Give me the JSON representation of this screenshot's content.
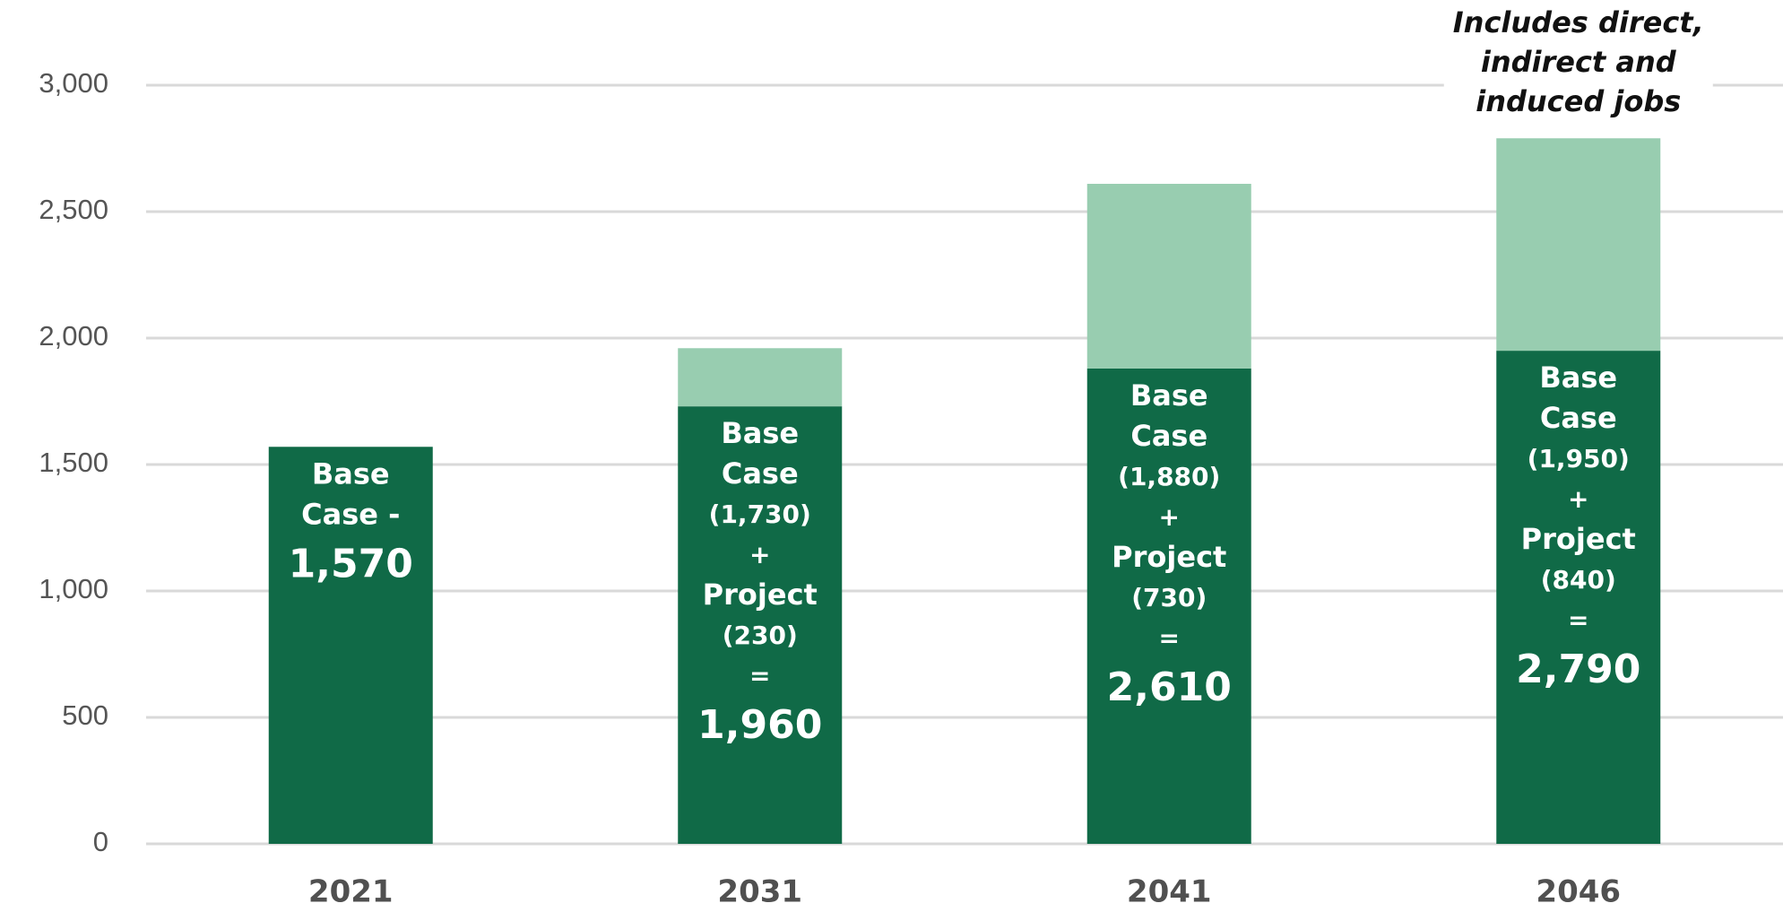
{
  "chart_data": {
    "type": "stacked_bar",
    "categories": [
      "2021",
      "2031",
      "2041",
      "2046"
    ],
    "series": [
      {
        "color": "#106a47",
        "values": [
          1570,
          1730,
          1880,
          1950
        ]
      },
      {
        "color": "#98cdb0",
        "values": [
          null,
          230,
          730,
          840
        ]
      }
    ],
    "bar_labels": [
      [
        "Base",
        "Case -",
        "1,570"
      ],
      [
        "Base",
        "Case",
        "(1,730)",
        "+",
        "Project",
        "(230)",
        "=",
        "1,960"
      ],
      [
        "Base",
        "Case",
        "(1,880)",
        "+",
        "Project",
        "(730)",
        "=",
        "2,610"
      ],
      [
        "Base",
        "Case",
        "(1,950)",
        "+",
        "Project",
        "(840)",
        "=",
        "2,790"
      ]
    ],
    "annotation": [
      "Includes direct,",
      "indirect and",
      "induced jobs"
    ],
    "ylim": [
      0,
      3000
    ],
    "yticks": [
      0,
      500,
      {
        "value": 1000,
        "label": "1,000"
      },
      {
        "value": 1500,
        "label": "1,500"
      },
      {
        "value": 2000,
        "label": "2,000"
      },
      {
        "value": 2500,
        "label": "2,500"
      },
      {
        "value": 3000,
        "label": "3,000"
      }
    ],
    "grid": true
  }
}
